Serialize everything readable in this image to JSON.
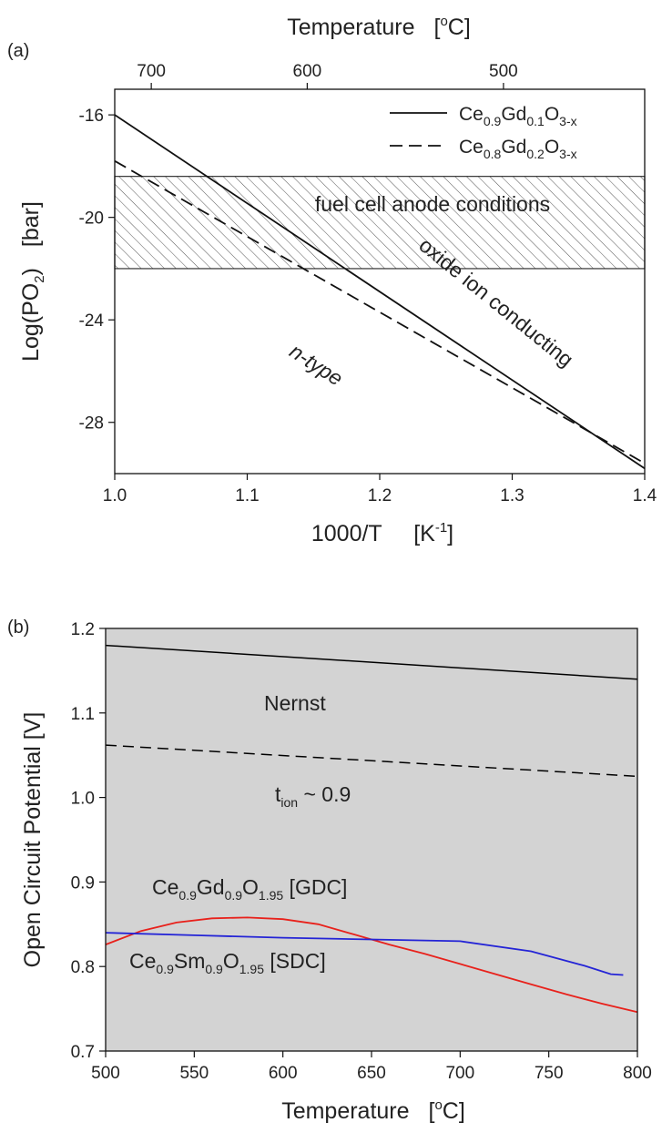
{
  "chart_data": [
    {
      "panel_label": "(a)",
      "type": "line",
      "xlabel": "1000/T",
      "xlabel_unit": "[K",
      "xlabel_unit_sup": "-1",
      "xlabel_unit_end": "]",
      "ylabel_prefix": "Log(PO",
      "ylabel_sub": "2",
      "ylabel_suffix": ")",
      "ylabel_unit": "[bar]",
      "top_axis_label": "Temperature",
      "top_axis_unit_pre": "[",
      "top_axis_unit_sup": "o",
      "top_axis_unit_post": "C]",
      "xlim": [
        1.0,
        1.4
      ],
      "ylim": [
        -30,
        -15
      ],
      "x_ticks": [
        1.0,
        1.1,
        1.2,
        1.3,
        1.4
      ],
      "x_tick_labels": [
        "1.0",
        "1.1",
        "1.2",
        "1.3",
        "1.4"
      ],
      "y_ticks": [
        -16,
        -20,
        -24,
        -28
      ],
      "y_tick_labels": [
        "-16",
        "-20",
        "-24",
        "-28"
      ],
      "top_ticks_celsius": [
        700,
        600,
        500
      ],
      "top_tick_labels": [
        "700",
        "600",
        "500"
      ],
      "series": [
        {
          "name_parts": [
            [
              "Ce",
              "n"
            ],
            [
              "0.9",
              "s"
            ],
            [
              "Gd",
              "n"
            ],
            [
              "0.1",
              "s"
            ],
            [
              "O",
              "n"
            ],
            [
              "3-x",
              "s"
            ]
          ],
          "style": "solid",
          "x": [
            1.0,
            1.4
          ],
          "y": [
            -16.0,
            -29.8
          ]
        },
        {
          "name_parts": [
            [
              "Ce",
              "n"
            ],
            [
              "0.8",
              "s"
            ],
            [
              "Gd",
              "n"
            ],
            [
              "0.2",
              "s"
            ],
            [
              "O",
              "n"
            ],
            [
              "3-x",
              "s"
            ]
          ],
          "style": "dashed",
          "x": [
            1.0,
            1.4
          ],
          "y": [
            -17.8,
            -29.6
          ]
        }
      ],
      "shaded_region": {
        "y_range": [
          -22.0,
          -18.4
        ],
        "pattern": "hatched"
      },
      "annotations": [
        {
          "text": "fuel cell anode conditions"
        },
        {
          "text": "oxide ion conducting"
        },
        {
          "text": "n-type"
        }
      ],
      "legend_position": "top-right",
      "grid": false
    },
    {
      "panel_label": "(b)",
      "type": "line",
      "xlabel": "Temperature",
      "xlabel_unit_pre": "[",
      "xlabel_unit_sup": "o",
      "xlabel_unit_post": "C]",
      "ylabel": "Open Circuit Potential [V]",
      "xlim": [
        500,
        800
      ],
      "ylim": [
        0.7,
        1.2
      ],
      "x_ticks": [
        500,
        550,
        600,
        650,
        700,
        750,
        800
      ],
      "x_tick_labels": [
        "500",
        "550",
        "600",
        "650",
        "700",
        "750",
        "800"
      ],
      "y_ticks": [
        0.7,
        0.8,
        0.9,
        1.0,
        1.1,
        1.2
      ],
      "y_tick_labels": [
        "0.7",
        "0.8",
        "0.9",
        "1.0",
        "1.1",
        "1.2"
      ],
      "background": "#d3d3d3",
      "series": [
        {
          "label_parts": [
            [
              "Nernst",
              "n"
            ]
          ],
          "style": "solid",
          "color": "#000000",
          "x": [
            500,
            800
          ],
          "y": [
            1.18,
            1.14
          ]
        },
        {
          "label_parts": [
            [
              "t",
              "n"
            ],
            [
              "ion",
              "s"
            ],
            [
              " ~ 0.9",
              "n"
            ]
          ],
          "style": "dashed",
          "color": "#000000",
          "x": [
            500,
            800
          ],
          "y": [
            1.062,
            1.025
          ]
        },
        {
          "label_parts": [
            [
              "Ce",
              "n"
            ],
            [
              "0.9",
              "s"
            ],
            [
              "Gd",
              "n"
            ],
            [
              "0.9",
              "s"
            ],
            [
              "O",
              "n"
            ],
            [
              "1.95",
              "s"
            ],
            [
              " [GDC]",
              "n"
            ]
          ],
          "style": "solid",
          "color": "#e8211b",
          "x": [
            500,
            520,
            540,
            560,
            580,
            600,
            620,
            640,
            660,
            680,
            700,
            720,
            740,
            760,
            780,
            800
          ],
          "y": [
            0.826,
            0.842,
            0.852,
            0.857,
            0.858,
            0.856,
            0.85,
            0.838,
            0.826,
            0.815,
            0.803,
            0.791,
            0.779,
            0.767,
            0.756,
            0.746
          ]
        },
        {
          "label_parts": [
            [
              "Ce",
              "n"
            ],
            [
              "0.9",
              "s"
            ],
            [
              "Sm",
              "n"
            ],
            [
              "0.9",
              "s"
            ],
            [
              "O",
              "n"
            ],
            [
              "1.95",
              "s"
            ],
            [
              " [SDC]",
              "n"
            ]
          ],
          "style": "solid",
          "color": "#2424d6",
          "x": [
            500,
            550,
            600,
            650,
            700,
            740,
            770,
            785,
            792
          ],
          "y": [
            0.84,
            0.837,
            0.834,
            0.832,
            0.83,
            0.818,
            0.801,
            0.791,
            0.79
          ]
        }
      ],
      "grid": false
    }
  ]
}
